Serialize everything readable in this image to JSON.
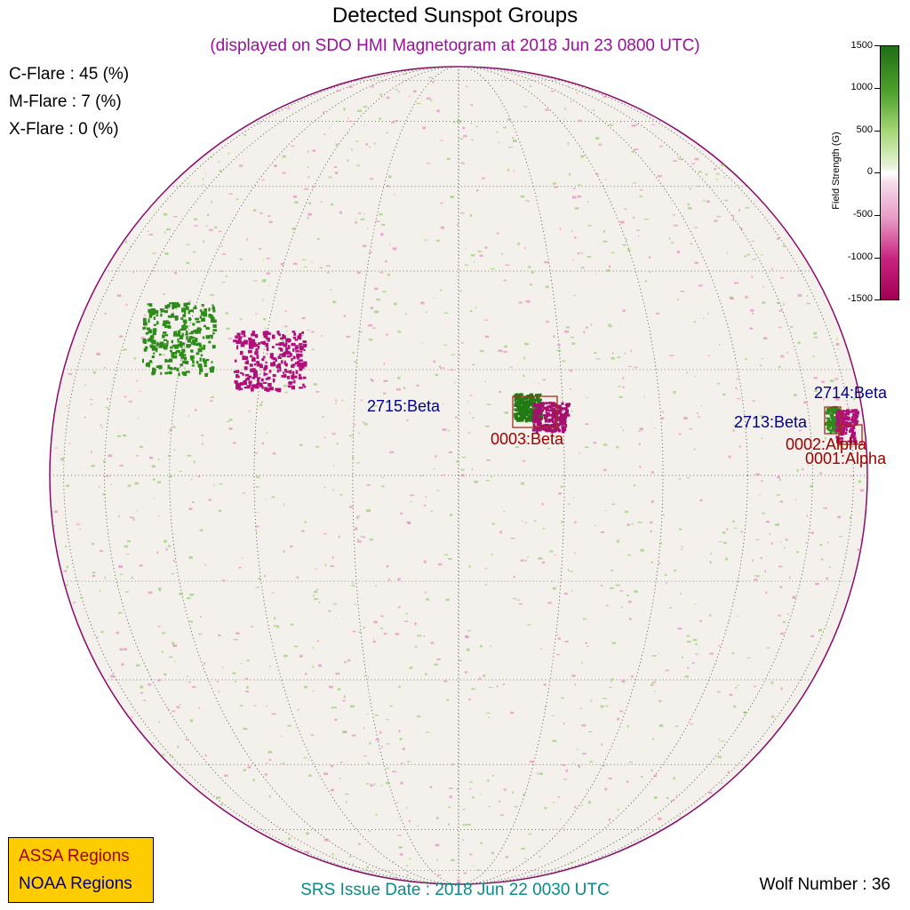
{
  "header": {
    "title": "Detected Sunspot Groups",
    "subtitle": "(displayed on SDO HMI Magnetogram at 2018 Jun 23 0800 UTC)"
  },
  "flare_probabilities": [
    {
      "label": "C-Flare : 45 (%)"
    },
    {
      "label": "M-Flare :  7 (%)"
    },
    {
      "label": "X-Flare :  0 (%)"
    }
  ],
  "colorbar": {
    "label": "Field Strength (G)",
    "ticks": [
      "1500",
      "1000",
      "500",
      "0",
      "-500",
      "-1000",
      "-1500"
    ],
    "colors": {
      "positive": "#1f6e16",
      "negative": "#a00055",
      "zero": "#ffffff"
    }
  },
  "regions": {
    "noaa": [
      {
        "label": "2715:Beta"
      },
      {
        "label": "2714:Beta"
      },
      {
        "label": "2713:Beta"
      }
    ],
    "assa": [
      {
        "label": "0003:Beta"
      },
      {
        "label": "0002:Alpha"
      },
      {
        "label": "0001:Alpha"
      }
    ]
  },
  "legend": {
    "assa_label": "ASSA Regions",
    "noaa_label": "NOAA Regions",
    "assa_color": "#a00000",
    "noaa_color": "#00008b",
    "background": "#ffcc00"
  },
  "footer": {
    "srs_issue": "SRS Issue Date : 2018 Jun 22 0030 UTC",
    "wolf_number": "Wolf Number : 36"
  }
}
